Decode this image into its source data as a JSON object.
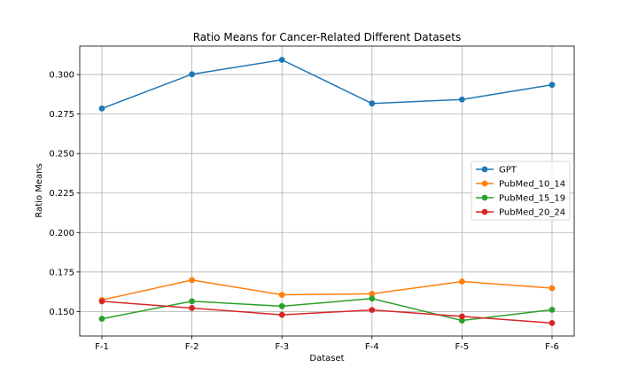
{
  "chart_data": {
    "type": "line",
    "title": "Ratio Means for Cancer-Related Different Datasets",
    "xlabel": "Dataset",
    "ylabel": "Ratio Means",
    "categories": [
      "F-1",
      "F-2",
      "F-3",
      "F-4",
      "F-5",
      "F-6"
    ],
    "ylim": [
      0.1345,
      0.318
    ],
    "yticks": [
      0.15,
      0.175,
      0.2,
      0.225,
      0.25,
      0.275,
      0.3
    ],
    "ytick_labels": [
      "0.150",
      "0.175",
      "0.200",
      "0.225",
      "0.250",
      "0.275",
      "0.300"
    ],
    "grid": true,
    "legend_position": "center-right",
    "series": [
      {
        "name": "GPT",
        "color": "#1f77b4",
        "values": [
          0.2785,
          0.3002,
          0.3093,
          0.2817,
          0.2842,
          0.2935
        ]
      },
      {
        "name": "PubMed_10_14",
        "color": "#ff7f0e",
        "values": [
          0.1573,
          0.1699,
          0.1606,
          0.1612,
          0.169,
          0.1648
        ]
      },
      {
        "name": "PubMed_15_19",
        "color": "#2ca02c",
        "values": [
          0.1454,
          0.1565,
          0.1534,
          0.1582,
          0.1443,
          0.1511
        ]
      },
      {
        "name": "PubMed_20_24",
        "color": "#d62728",
        "values": [
          0.1565,
          0.1522,
          0.1479,
          0.151,
          0.1469,
          0.1427
        ]
      }
    ]
  }
}
